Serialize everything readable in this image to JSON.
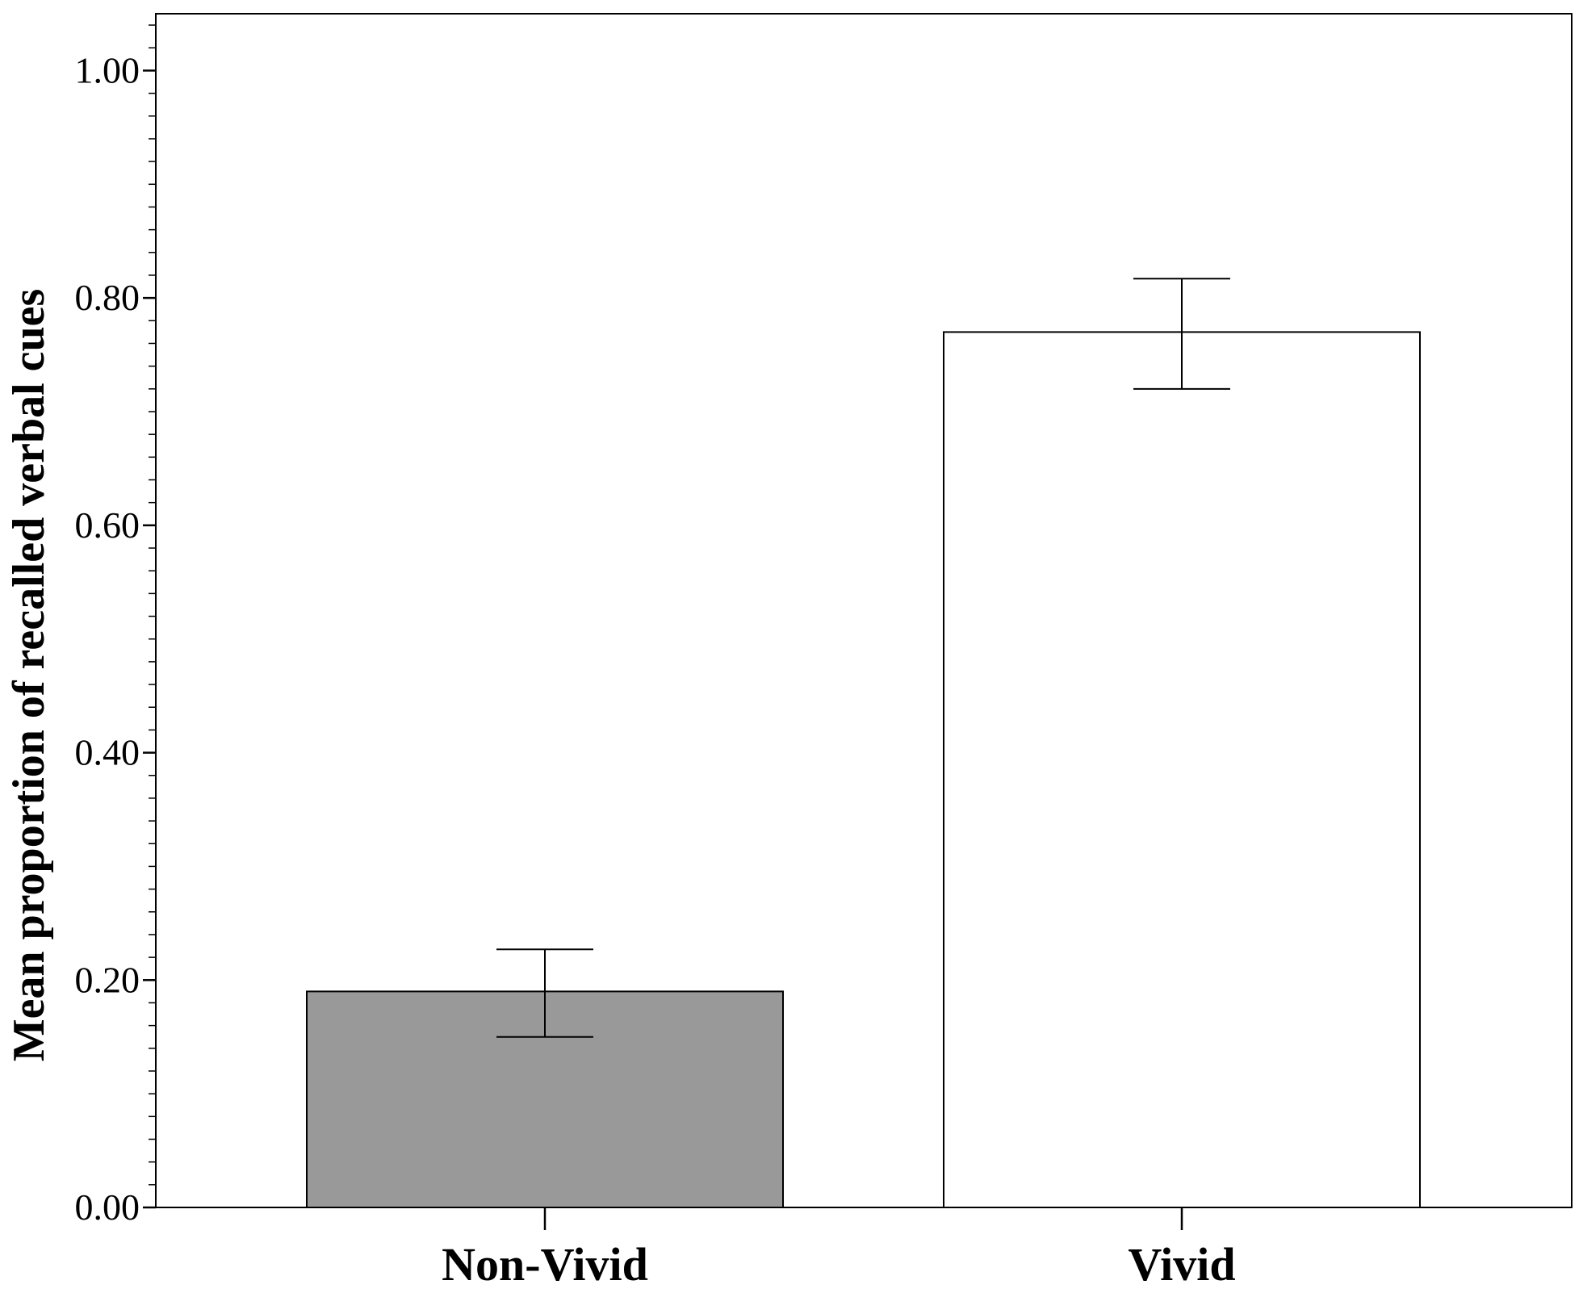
{
  "chart_data": {
    "type": "bar",
    "categories": [
      "Non-Vivid",
      "Vivid"
    ],
    "values": [
      0.19,
      0.77
    ],
    "error_bars": [
      {
        "lower": 0.15,
        "upper": 0.227
      },
      {
        "lower": 0.72,
        "upper": 0.817
      }
    ],
    "bar_colors": [
      "#999999",
      "#ffffff"
    ],
    "ylabel": "Mean proportion of recalled verbal cues",
    "xlabel": "",
    "ylim": [
      0,
      1.05
    ],
    "yticks": [
      0.0,
      0.2,
      0.4,
      0.6,
      0.8,
      1.0
    ],
    "ytick_labels": [
      "0.00",
      "0.20",
      "0.40",
      "0.60",
      "0.80",
      "1.00"
    ],
    "minor_tick_step": 0.02,
    "grid": false,
    "legend": "none"
  }
}
